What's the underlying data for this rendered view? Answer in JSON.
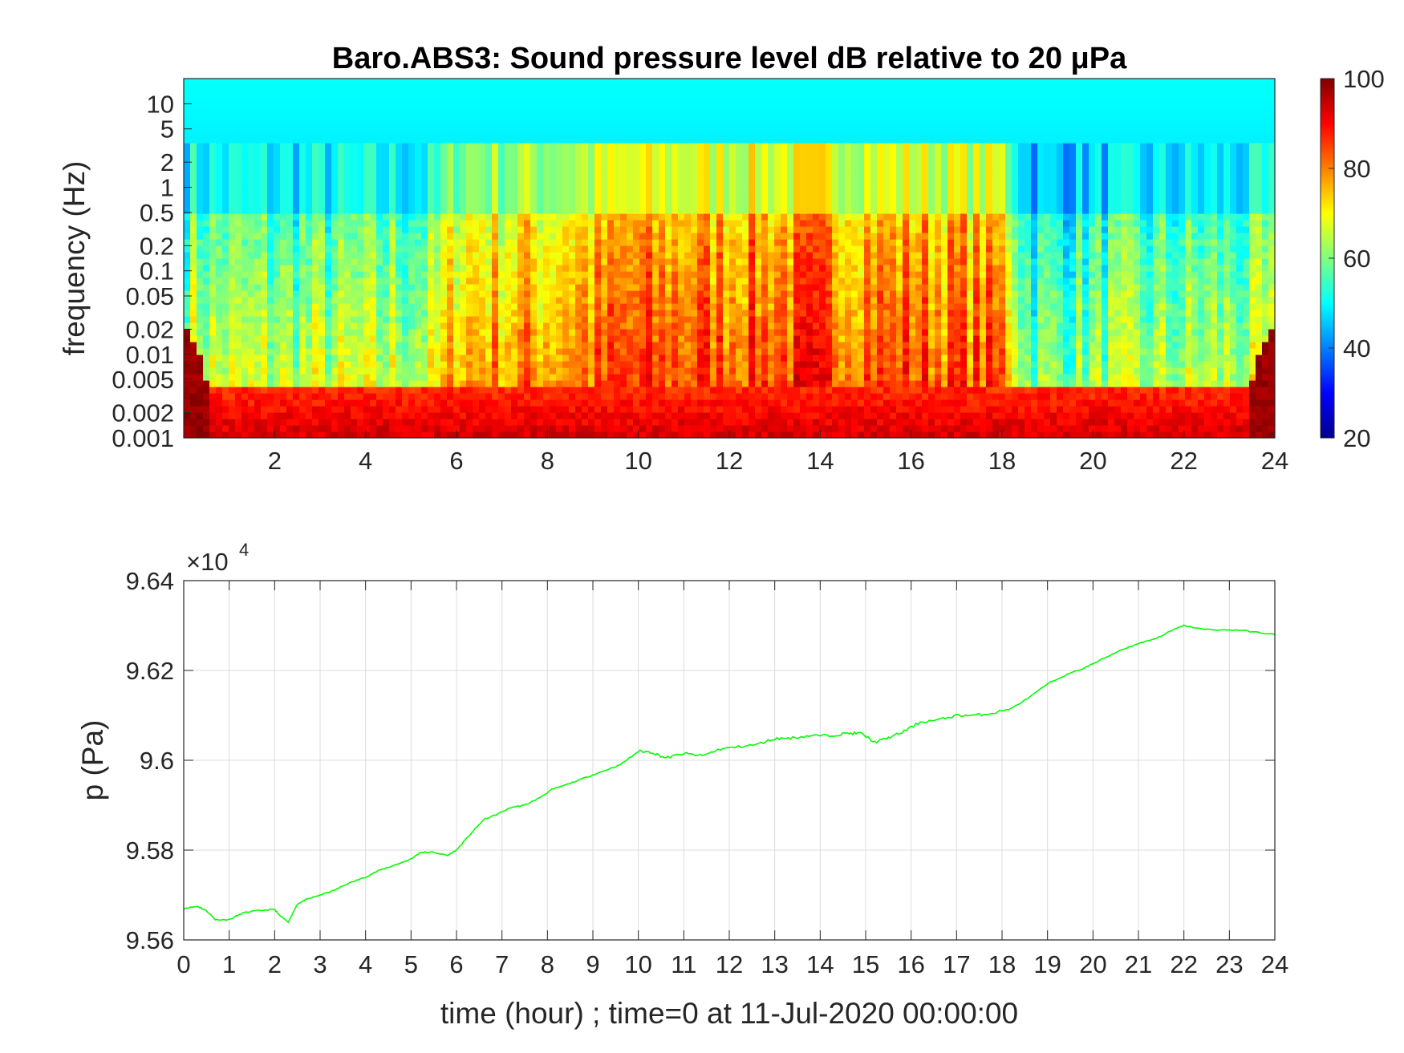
{
  "chart_data": [
    {
      "type": "heatmap",
      "title": "Baro.ABS3: Sound pressure level dB relative to 20 μPa",
      "xlabel": "",
      "ylabel": "frequency (Hz)",
      "xlim": [
        0,
        24
      ],
      "x_ticks": [
        2,
        4,
        6,
        8,
        10,
        12,
        14,
        16,
        18,
        20,
        22,
        24
      ],
      "y_scale": "log",
      "ylim": [
        0.001,
        20
      ],
      "y_ticks": [
        {
          "value": 10,
          "label": "10"
        },
        {
          "value": 5,
          "label": "5"
        },
        {
          "value": 2,
          "label": "2"
        },
        {
          "value": 1,
          "label": "1"
        },
        {
          "value": 0.5,
          "label": "0.5"
        },
        {
          "value": 0.2,
          "label": "0.2"
        },
        {
          "value": 0.1,
          "label": "0.1"
        },
        {
          "value": 0.05,
          "label": "0.05"
        },
        {
          "value": 0.02,
          "label": "0.02"
        },
        {
          "value": 0.01,
          "label": "0.01"
        },
        {
          "value": 0.005,
          "label": "0.005"
        },
        {
          "value": 0.002,
          "label": "0.002"
        },
        {
          "value": 0.001,
          "label": "0.001"
        }
      ],
      "colorbar": {
        "colormap": "jet",
        "clim": [
          20,
          100
        ],
        "ticks": [
          100,
          80,
          60,
          40,
          20
        ]
      },
      "level_profile": {
        "description_time_hours": [
          0,
          2,
          4,
          5.5,
          6,
          8,
          10,
          12,
          14,
          16,
          18,
          18.6,
          20,
          22,
          24
        ],
        "activity": [
          0.35,
          0.3,
          0.3,
          0.35,
          0.7,
          0.75,
          0.9,
          0.92,
          0.95,
          0.9,
          0.85,
          0.15,
          0.2,
          0.25,
          0.3
        ]
      },
      "grid": false
    },
    {
      "type": "line",
      "title": "",
      "xlabel": "time (hour) ; time=0 at 11-Jul-2020 00:00:00",
      "ylabel": "p (Pa)",
      "y_exponent_label": "×10",
      "y_exponent": "4",
      "xlim": [
        0,
        24
      ],
      "ylim": [
        95600,
        96400
      ],
      "x_ticks": [
        0,
        1,
        2,
        3,
        4,
        5,
        6,
        7,
        8,
        9,
        10,
        11,
        12,
        13,
        14,
        15,
        16,
        17,
        18,
        19,
        20,
        21,
        22,
        23,
        24
      ],
      "y_ticks": [
        {
          "value": 96400,
          "label": "9.64"
        },
        {
          "value": 96200,
          "label": "9.62"
        },
        {
          "value": 96000,
          "label": "9.6"
        },
        {
          "value": 95800,
          "label": "9.58"
        },
        {
          "value": 95600,
          "label": "9.56"
        }
      ],
      "grid": true,
      "series": [
        {
          "color": "#00ff00",
          "x": [
            0,
            0.3,
            0.5,
            0.7,
            1.0,
            1.3,
            1.6,
            2.0,
            2.1,
            2.3,
            2.5,
            2.7,
            3.0,
            3.3,
            3.6,
            4.0,
            4.3,
            4.6,
            5.0,
            5.2,
            5.5,
            5.8,
            6.0,
            6.3,
            6.6,
            6.9,
            7.2,
            7.5,
            7.8,
            8.1,
            8.4,
            8.8,
            9.2,
            9.6,
            10.0,
            10.3,
            10.6,
            11.0,
            11.4,
            11.8,
            12.2,
            12.6,
            13.0,
            13.4,
            13.8,
            14.2,
            14.6,
            14.9,
            15.2,
            15.5,
            15.8,
            16.2,
            16.6,
            17.0,
            17.4,
            17.8,
            18.2,
            18.6,
            19.0,
            19.4,
            19.8,
            20.2,
            20.6,
            21.0,
            21.4,
            21.8,
            22.0,
            22.4,
            22.8,
            23.2,
            23.6,
            24.0
          ],
          "y": [
            95670,
            95675,
            95665,
            95645,
            95645,
            95660,
            95665,
            95668,
            95655,
            95640,
            95680,
            95690,
            95700,
            95710,
            95725,
            95740,
            95755,
            95765,
            95780,
            95795,
            95795,
            95788,
            95800,
            95835,
            95868,
            95880,
            95895,
            95900,
            95915,
            95935,
            95945,
            95960,
            95975,
            95990,
            96020,
            96018,
            96005,
            96015,
            96010,
            96025,
            96030,
            96035,
            96048,
            96050,
            96055,
            96055,
            96060,
            96060,
            96040,
            96050,
            96062,
            96085,
            96090,
            96100,
            96100,
            96105,
            96115,
            96140,
            96170,
            96190,
            96205,
            96225,
            96245,
            96260,
            96272,
            96292,
            96300,
            96292,
            96290,
            96290,
            96285,
            96280
          ]
        }
      ]
    }
  ]
}
